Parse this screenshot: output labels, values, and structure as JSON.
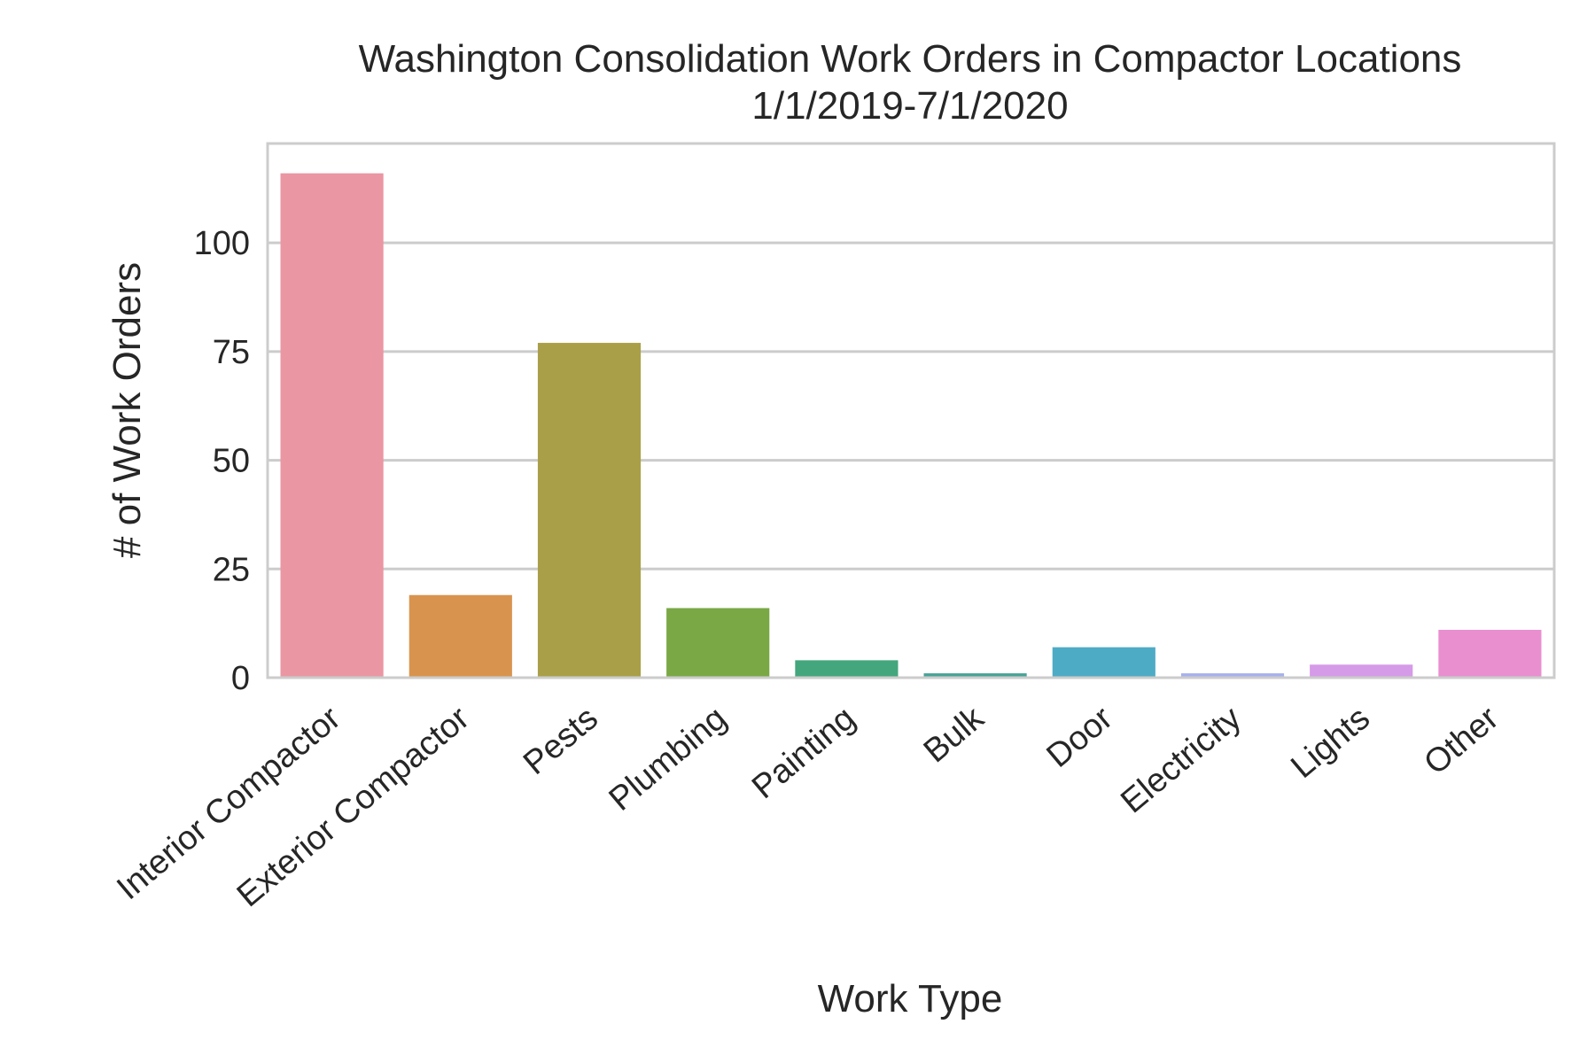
{
  "chart_data": {
    "type": "bar",
    "title": "Washington Consolidation Work Orders in Compactor Locations",
    "subtitle": "1/1/2019-7/1/2020",
    "xlabel": "Work Type",
    "ylabel": "# of Work Orders",
    "categories": [
      "Interior Compactor",
      "Exterior Compactor",
      "Pests",
      "Plumbing",
      "Painting",
      "Bulk",
      "Door",
      "Electricity",
      "Lights",
      "Other"
    ],
    "values": [
      116,
      19,
      77,
      16,
      4,
      1,
      7,
      1,
      3,
      11
    ],
    "colors": [
      "#ea96a3",
      "#d8944e",
      "#a99f48",
      "#79a845",
      "#44a67d",
      "#48a397",
      "#4eabc5",
      "#a6b0ec",
      "#d59ae8",
      "#e98fd0"
    ],
    "ylim": [
      0,
      122.85
    ],
    "yticks": [
      0,
      25,
      50,
      75,
      100
    ],
    "grid": true,
    "legend": "none"
  }
}
